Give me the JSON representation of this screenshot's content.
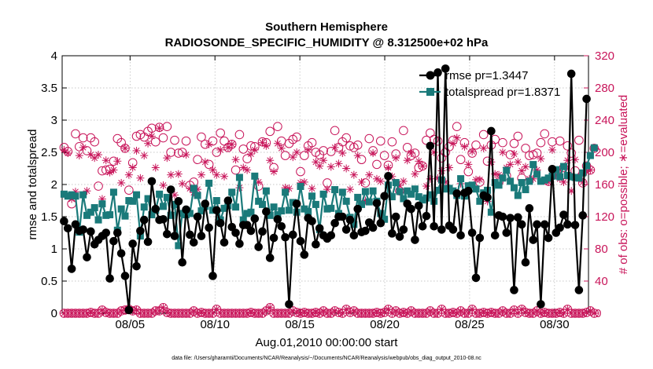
{
  "chart_data": {
    "type": "line",
    "title": "Southern Hemisphere",
    "subtitle": "RADIOSONDE_SPECIFIC_HUMIDITY @ 8.312500e+02 hPa",
    "xlabel": "Aug.01,2010 00:00:00 start",
    "ylabel": "rmse and totalspread",
    "ylabel_right": "# of obs: o=possible; ∗=evaluated",
    "footnote": "data file: /Users/gharamti/Documents/NCAR/Reanalysis/~/Documents/NCAR/Reanalysis/webpub/obs_diag_output_2010-08.nc",
    "xlim": [
      1.0,
      32.0
    ],
    "ylim": [
      0,
      4
    ],
    "ylim_right": [
      0,
      320
    ],
    "x_ticks": [
      5,
      10,
      15,
      20,
      25,
      30
    ],
    "x_tick_labels": [
      "08/05",
      "08/10",
      "08/15",
      "08/20",
      "08/25",
      "08/30"
    ],
    "y_ticks": [
      "0",
      "0.5",
      "1",
      "1.5",
      "2",
      "2.5",
      "3",
      "3.5",
      "4"
    ],
    "y_ticks_right": [
      "0",
      "40",
      "80",
      "120",
      "160",
      "200",
      "240",
      "280",
      "320"
    ],
    "colors": {
      "rmse": "#000000",
      "spread": "#1a7a7a",
      "obs": "#c8155a"
    },
    "series": [
      {
        "name": "rmse",
        "legend": "rmse pr=1.3447",
        "values": [
          1.43,
          1.32,
          0.69,
          1.38,
          1.28,
          1.3,
          0.87,
          1.27,
          1.07,
          1.14,
          1.2,
          1.25,
          0.54,
          1.12,
          1.25,
          0.93,
          0.58,
          0.05,
          1.08,
          0.73,
          1.28,
          1.45,
          1.11,
          2.05,
          1.62,
          1.45,
          1.46,
          1.23,
          1.92,
          1.2,
          1.74,
          0.79,
          1.61,
          1.22,
          1.1,
          1.5,
          1.2,
          1.7,
          1.33,
          0.58,
          1.6,
          1.4,
          1.1,
          1.75,
          1.34,
          1.25,
          1.08,
          1.37,
          1.37,
          1.28,
          1.47,
          1.03,
          1.27,
          1.58,
          0.86,
          1.17,
          1.46,
          1.35,
          1.18,
          0.14,
          1.22,
          1.7,
          1.12,
          0.91,
          1.48,
          1.43,
          1.07,
          1.32,
          1.21,
          1.16,
          1.21,
          1.4,
          1.5,
          1.5,
          1.3,
          1.45,
          1.21,
          1.62,
          1.26,
          1.28,
          1.41,
          1.33,
          1.71,
          1.4,
          1.82,
          2.13,
          1.24,
          1.5,
          1.19,
          1.3,
          1.7,
          1.62,
          1.14,
          1.67,
          1.35,
          1.51,
          2.6,
          1.35,
          3.74,
          1.3,
          3.8,
          1.36,
          1.3,
          1.86,
          1.21,
          1.87,
          1.9,
          1.25,
          0.55,
          1.17,
          1.83,
          1.8,
          2.83,
          1.21,
          1.52,
          1.5,
          1.25,
          1.48,
          0.36,
          1.49,
          1.38,
          0.79,
          1.63,
          1.14,
          1.38,
          0.14,
          1.38,
          1.17,
          2.24,
          1.25,
          1.33,
          1.53,
          1.38,
          3.72,
          1.37,
          0.36,
          1.52,
          3.33
        ],
        "marker": "filled-circle"
      },
      {
        "name": "totalspread",
        "legend": "totalspread pr=1.8371",
        "values": [
          1.85,
          1.82,
          1.84,
          1.82,
          1.26,
          1.84,
          1.52,
          1.57,
          1.64,
          1.45,
          1.7,
          1.52,
          1.53,
          1.88,
          1.29,
          1.62,
          1.51,
          1.75,
          1.74,
          1.84,
          1.2,
          1.65,
          1.78,
          1.53,
          1.6,
          1.85,
          1.66,
          1.8,
          1.52,
          1.69,
          1.05,
          1.55,
          1.53,
          1.55,
          1.94,
          1.83,
          1.59,
          1.66,
          2.02,
          1.6,
          1.75,
          1.45,
          1.63,
          1.67,
          1.88,
          1.65,
          2.11,
          1.45,
          1.55,
          1.57,
          2.13,
          1.74,
          1.69,
          1.9,
          1.52,
          1.65,
          1.53,
          1.59,
          1.88,
          1.6,
          1.72,
          1.57,
          1.97,
          1.62,
          1.58,
          1.82,
          1.69,
          1.3,
          1.85,
          1.62,
          1.63,
          1.92,
          1.55,
          1.88,
          1.74,
          1.49,
          1.38,
          1.8,
          1.69,
          1.89,
          1.73,
          1.9,
          1.74,
          1.55,
          1.46,
          1.99,
          1.81,
          2.03,
          1.89,
          1.78,
          1.9,
          1.85,
          1.93,
          1.81,
          1.76,
          1.79,
          1.84,
          1.74,
          1.91,
          2.07,
          1.93,
          1.94,
          1.9,
          1.83,
          2.09,
          1.82,
          1.98,
          1.99,
          1.93,
          1.74,
          1.87,
          1.91,
          1.57,
          2.03,
          1.99,
          2.1,
          2.22,
          2.05,
          1.95,
          1.83,
          2.03,
          1.92,
          2.05,
          2.31,
          2.16,
          2.05,
          2.07,
          2.1,
          2.13,
          2.23,
          2.12,
          2.28,
          2.14,
          2.12,
          2.11,
          2.1,
          2.18,
          2.29,
          2.45,
          2.57
        ],
        "marker": "filled-square"
      }
    ],
    "obs_possible": [
      206,
      201,
      136,
      223,
      207,
      218,
      202,
      218,
      213,
      158,
      177,
      178,
      179,
      189,
      217,
      212,
      205,
      153,
      187,
      220,
      222,
      219,
      226,
      230,
      213,
      231,
      218,
      232,
      200,
      215,
      199,
      200,
      214,
      159,
      163,
      191,
      219,
      210,
      185,
      214,
      200,
      224,
      214,
      206,
      210,
      178,
      222,
      204,
      192,
      208,
      207,
      158,
      213,
      212,
      226,
      181,
      232,
      214,
      196,
      211,
      216,
      219,
      176,
      196,
      208,
      212,
      200,
      197,
      202,
      162,
      201,
      227,
      206,
      213,
      218,
      208,
      206,
      209,
      191,
      162,
      217,
      202,
      185,
      214,
      196,
      184,
      213,
      198,
      152,
      227,
      206,
      196,
      199,
      181,
      183,
      215,
      224,
      216,
      214,
      193,
      200,
      207,
      215,
      232,
      191,
      212,
      176,
      199,
      209,
      163,
      222,
      189,
      209,
      216,
      163,
      212,
      171,
      197,
      211,
      220,
      168,
      205,
      196,
      197,
      199,
      212,
      223,
      164,
      213,
      176,
      214,
      181,
      208,
      199,
      177,
      215,
      162,
      183,
      178,
      205
    ],
    "obs_evaluated": [
      203,
      199,
      142,
      151,
      196,
      206,
      152,
      197,
      193,
      197,
      142,
      190,
      175,
      178,
      189,
      162,
      205,
      172,
      181,
      202,
      168,
      196,
      211,
      220,
      181,
      230,
      159,
      193,
      172,
      147,
      173,
      161,
      197,
      155,
      150,
      154,
      172,
      188,
      210,
      178,
      172,
      203,
      170,
      206,
      210,
      191,
      156,
      181,
      178,
      198,
      203,
      163,
      212,
      208,
      190,
      176,
      211,
      205,
      156,
      155,
      194,
      200,
      162,
      163,
      203,
      155,
      188,
      183,
      190,
      154,
      182,
      206,
      186,
      199,
      180,
      154,
      172,
      196,
      163,
      140,
      172,
      199,
      167,
      164,
      146,
      181,
      170,
      193,
      159,
      164,
      190,
      199,
      173,
      189,
      183,
      158,
      167,
      200,
      168,
      177,
      163,
      181,
      211,
      218,
      161,
      207,
      185,
      201,
      166,
      166,
      205,
      139,
      188,
      173,
      172,
      200,
      181,
      185,
      198,
      188,
      177,
      182,
      167,
      167,
      178,
      192,
      165,
      163,
      203,
      172,
      167,
      163,
      190,
      152,
      191,
      169,
      163,
      176,
      178,
      205
    ],
    "obs_possible_low": [
      0,
      0,
      0,
      0,
      0,
      0,
      0,
      1,
      0,
      0,
      4,
      1,
      0,
      0,
      0,
      3,
      4,
      5,
      3,
      4,
      0,
      0,
      0,
      0,
      3,
      3,
      7,
      1,
      0,
      0,
      0,
      0,
      0,
      0,
      3,
      0,
      1,
      0,
      0,
      0,
      5,
      0,
      0,
      0,
      0,
      0,
      0,
      0,
      0,
      1,
      0,
      0,
      0,
      3,
      7,
      0,
      0,
      0,
      0,
      0,
      3,
      1,
      0,
      1,
      0,
      0,
      1,
      0,
      3,
      0,
      0,
      3,
      1,
      0,
      5,
      1,
      3,
      0,
      0,
      0,
      0,
      0,
      1,
      0,
      1,
      5,
      0,
      3,
      0,
      1,
      0,
      3,
      0,
      0,
      0,
      0,
      3,
      0,
      0,
      5,
      0,
      0,
      1,
      0,
      3,
      0,
      0,
      5,
      0,
      0,
      1,
      0,
      1,
      0,
      0,
      3,
      0,
      0,
      4,
      0,
      5,
      1,
      0,
      0,
      3,
      0,
      1,
      0,
      0,
      0,
      1,
      0,
      5,
      0,
      0,
      0,
      0,
      1,
      3,
      0
    ],
    "obs_evaluated_low": [
      0,
      0,
      0,
      0,
      0,
      0,
      0,
      1,
      0,
      0,
      4,
      1,
      0,
      0,
      0,
      3,
      4,
      5,
      3,
      4,
      0,
      0,
      0,
      0,
      3,
      3,
      7,
      1,
      0,
      0,
      0,
      0,
      0,
      0,
      3,
      0,
      1,
      0,
      0,
      0,
      5,
      0,
      0,
      0,
      0,
      0,
      0,
      0,
      0,
      1,
      0,
      0,
      0,
      3,
      7,
      0,
      0,
      0,
      0,
      0,
      3,
      1,
      0,
      1,
      0,
      0,
      1,
      0,
      3,
      0,
      0,
      3,
      1,
      0,
      5,
      1,
      3,
      0,
      0,
      0,
      0,
      0,
      1,
      0,
      1,
      5,
      0,
      3,
      0,
      1,
      0,
      3,
      0,
      0,
      0,
      0,
      3,
      0,
      0,
      5,
      0,
      0,
      1,
      0,
      3,
      0,
      0,
      5,
      0,
      0,
      1,
      0,
      1,
      0,
      0,
      3,
      0,
      0,
      4,
      0,
      5,
      1,
      0,
      0,
      3,
      0,
      1,
      0,
      0,
      0,
      1,
      0,
      5,
      0,
      0,
      0,
      0,
      1,
      3,
      0
    ]
  }
}
